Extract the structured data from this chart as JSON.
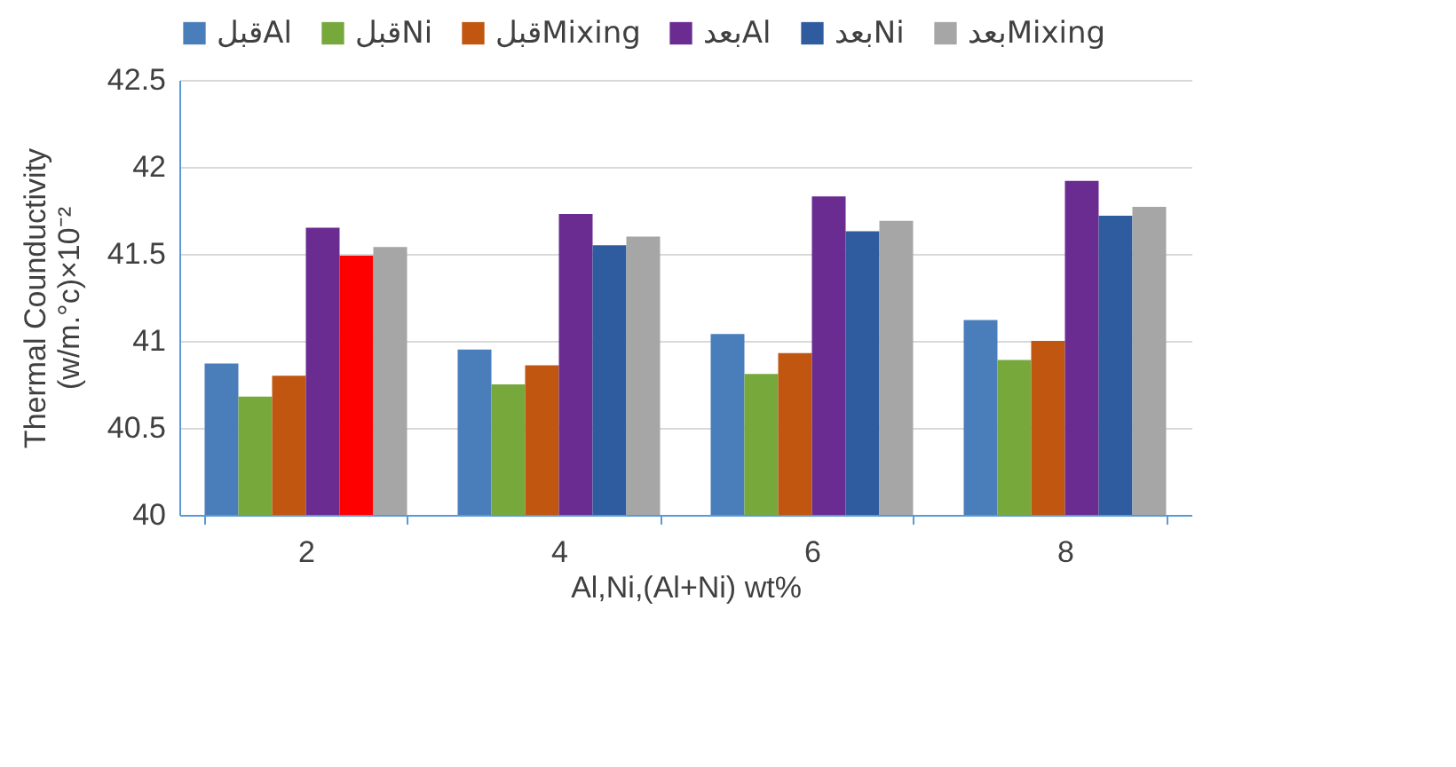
{
  "chart_data": {
    "type": "bar",
    "xlabel": "Al,Ni,(Al+Ni) wt%",
    "ylabel": "Thermal Counductivity\n(w/m.°c)×10⁻²",
    "categories": [
      "2",
      "4",
      "6",
      "8"
    ],
    "series": [
      {
        "name": "قبلAl",
        "color": "#4a7ebb",
        "values": [
          40.87,
          40.95,
          41.04,
          41.12
        ]
      },
      {
        "name": "قبلNi",
        "color": "#77a83c",
        "values": [
          40.68,
          40.75,
          40.81,
          40.89
        ]
      },
      {
        "name": "قبلMixing",
        "color": "#c0560f",
        "values": [
          40.8,
          40.86,
          40.93,
          41.0
        ]
      },
      {
        "name": "بعدAl",
        "color": "#6a2c91",
        "values": [
          41.65,
          41.73,
          41.83,
          41.92
        ]
      },
      {
        "name": "بعدNi",
        "color": "#2e5c9e",
        "colors": [
          "#ff0000",
          "#2e5c9e",
          "#2e5c9e",
          "#2e5c9e"
        ],
        "values": [
          41.49,
          41.55,
          41.63,
          41.72
        ]
      },
      {
        "name": "بعدMixing",
        "color": "#a6a6a6",
        "values": [
          41.54,
          41.6,
          41.69,
          41.77
        ]
      }
    ],
    "ylim": [
      40,
      42.5
    ],
    "yticks": [
      40,
      40.5,
      41,
      41.5,
      42,
      42.5
    ],
    "grid": "y",
    "legend": "top"
  }
}
